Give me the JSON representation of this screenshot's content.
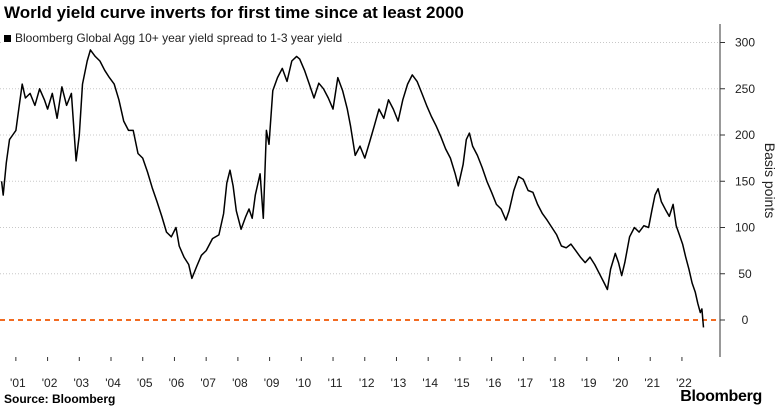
{
  "header": {
    "title": "World yield curve inverts for first time since at least 2000"
  },
  "legend": {
    "label": "Bloomberg Global Agg 10+ year yield spread to 1-3 year yield"
  },
  "footer": {
    "source": "Source: Bloomberg",
    "brand": "Bloomberg"
  },
  "colors": {
    "line": "#000000",
    "zero_line": "#f26b21",
    "grid": "#c8c8c8"
  },
  "chart_data": {
    "type": "line",
    "title": "World yield curve inverts for first time since at least 2000",
    "ylabel": "Basis points",
    "xlabel": "",
    "ylim": [
      -40,
      320
    ],
    "yticks": [
      0,
      50,
      100,
      150,
      200,
      250,
      300
    ],
    "xlim": [
      2000.5,
      2023.2
    ],
    "xticks": [
      {
        "value": 2001,
        "label": "'01"
      },
      {
        "value": 2002,
        "label": "'02"
      },
      {
        "value": 2003,
        "label": "'03"
      },
      {
        "value": 2004,
        "label": "'04"
      },
      {
        "value": 2005,
        "label": "'05"
      },
      {
        "value": 2006,
        "label": "'06"
      },
      {
        "value": 2007,
        "label": "'07"
      },
      {
        "value": 2008,
        "label": "'08"
      },
      {
        "value": 2009,
        "label": "'09"
      },
      {
        "value": 2010,
        "label": "'10"
      },
      {
        "value": 2011,
        "label": "'11"
      },
      {
        "value": 2012,
        "label": "'12"
      },
      {
        "value": 2013,
        "label": "'13"
      },
      {
        "value": 2014,
        "label": "'14"
      },
      {
        "value": 2015,
        "label": "'15"
      },
      {
        "value": 2016,
        "label": "'16"
      },
      {
        "value": 2017,
        "label": "'17"
      },
      {
        "value": 2018,
        "label": "'18"
      },
      {
        "value": 2019,
        "label": "'19"
      },
      {
        "value": 2020,
        "label": "'20"
      },
      {
        "value": 2021,
        "label": "'21"
      },
      {
        "value": 2022,
        "label": "'22"
      }
    ],
    "grid": "horizontal dotted",
    "legend_position": "top-left",
    "reference_line": {
      "y": 0,
      "style": "dashed",
      "color": "#f26b21"
    },
    "series": [
      {
        "name": "Bloomberg Global Agg 10+ year yield spread to 1-3 year yield",
        "points": [
          [
            2000.55,
            150
          ],
          [
            2000.6,
            135
          ],
          [
            2000.7,
            170
          ],
          [
            2000.8,
            195
          ],
          [
            2000.9,
            200
          ],
          [
            2001.0,
            205
          ],
          [
            2001.1,
            230
          ],
          [
            2001.2,
            255
          ],
          [
            2001.3,
            240
          ],
          [
            2001.45,
            245
          ],
          [
            2001.6,
            232
          ],
          [
            2001.75,
            250
          ],
          [
            2001.9,
            238
          ],
          [
            2002.0,
            228
          ],
          [
            2002.15,
            245
          ],
          [
            2002.3,
            218
          ],
          [
            2002.45,
            252
          ],
          [
            2002.6,
            232
          ],
          [
            2002.75,
            245
          ],
          [
            2002.9,
            172
          ],
          [
            2003.0,
            200
          ],
          [
            2003.1,
            255
          ],
          [
            2003.25,
            280
          ],
          [
            2003.35,
            292
          ],
          [
            2003.5,
            285
          ],
          [
            2003.65,
            280
          ],
          [
            2003.8,
            270
          ],
          [
            2003.95,
            262
          ],
          [
            2004.1,
            255
          ],
          [
            2004.25,
            238
          ],
          [
            2004.4,
            215
          ],
          [
            2004.55,
            205
          ],
          [
            2004.7,
            205
          ],
          [
            2004.85,
            180
          ],
          [
            2005.0,
            175
          ],
          [
            2005.15,
            160
          ],
          [
            2005.3,
            143
          ],
          [
            2005.45,
            128
          ],
          [
            2005.6,
            112
          ],
          [
            2005.75,
            95
          ],
          [
            2005.9,
            90
          ],
          [
            2006.05,
            100
          ],
          [
            2006.15,
            80
          ],
          [
            2006.3,
            68
          ],
          [
            2006.45,
            60
          ],
          [
            2006.55,
            45
          ],
          [
            2006.7,
            58
          ],
          [
            2006.85,
            70
          ],
          [
            2007.0,
            75
          ],
          [
            2007.2,
            88
          ],
          [
            2007.4,
            92
          ],
          [
            2007.55,
            115
          ],
          [
            2007.65,
            148
          ],
          [
            2007.75,
            162
          ],
          [
            2007.85,
            145
          ],
          [
            2007.95,
            118
          ],
          [
            2008.1,
            98
          ],
          [
            2008.25,
            112
          ],
          [
            2008.35,
            120
          ],
          [
            2008.45,
            110
          ],
          [
            2008.55,
            135
          ],
          [
            2008.7,
            158
          ],
          [
            2008.8,
            110
          ],
          [
            2008.9,
            205
          ],
          [
            2008.98,
            190
          ],
          [
            2009.1,
            248
          ],
          [
            2009.25,
            262
          ],
          [
            2009.4,
            272
          ],
          [
            2009.55,
            258
          ],
          [
            2009.7,
            280
          ],
          [
            2009.85,
            285
          ],
          [
            2009.95,
            282
          ],
          [
            2010.1,
            270
          ],
          [
            2010.25,
            255
          ],
          [
            2010.4,
            240
          ],
          [
            2010.55,
            256
          ],
          [
            2010.7,
            250
          ],
          [
            2010.85,
            240
          ],
          [
            2011.0,
            228
          ],
          [
            2011.15,
            262
          ],
          [
            2011.3,
            248
          ],
          [
            2011.45,
            228
          ],
          [
            2011.55,
            210
          ],
          [
            2011.7,
            178
          ],
          [
            2011.85,
            188
          ],
          [
            2012.0,
            175
          ],
          [
            2012.15,
            192
          ],
          [
            2012.3,
            210
          ],
          [
            2012.45,
            228
          ],
          [
            2012.6,
            218
          ],
          [
            2012.75,
            238
          ],
          [
            2012.9,
            228
          ],
          [
            2013.05,
            215
          ],
          [
            2013.2,
            238
          ],
          [
            2013.35,
            255
          ],
          [
            2013.5,
            265
          ],
          [
            2013.65,
            258
          ],
          [
            2013.8,
            245
          ],
          [
            2013.95,
            232
          ],
          [
            2014.1,
            220
          ],
          [
            2014.25,
            210
          ],
          [
            2014.4,
            198
          ],
          [
            2014.55,
            185
          ],
          [
            2014.7,
            175
          ],
          [
            2014.85,
            158
          ],
          [
            2014.95,
            145
          ],
          [
            2015.1,
            168
          ],
          [
            2015.2,
            195
          ],
          [
            2015.3,
            202
          ],
          [
            2015.4,
            188
          ],
          [
            2015.55,
            178
          ],
          [
            2015.7,
            165
          ],
          [
            2015.85,
            150
          ],
          [
            2016.0,
            138
          ],
          [
            2016.15,
            125
          ],
          [
            2016.3,
            120
          ],
          [
            2016.45,
            108
          ],
          [
            2016.55,
            118
          ],
          [
            2016.7,
            140
          ],
          [
            2016.85,
            155
          ],
          [
            2017.0,
            152
          ],
          [
            2017.15,
            140
          ],
          [
            2017.3,
            138
          ],
          [
            2017.45,
            125
          ],
          [
            2017.6,
            115
          ],
          [
            2017.75,
            108
          ],
          [
            2017.9,
            100
          ],
          [
            2018.05,
            92
          ],
          [
            2018.2,
            80
          ],
          [
            2018.35,
            78
          ],
          [
            2018.5,
            82
          ],
          [
            2018.65,
            75
          ],
          [
            2018.8,
            68
          ],
          [
            2018.95,
            62
          ],
          [
            2019.1,
            68
          ],
          [
            2019.25,
            60
          ],
          [
            2019.4,
            50
          ],
          [
            2019.55,
            40
          ],
          [
            2019.65,
            33
          ],
          [
            2019.75,
            55
          ],
          [
            2019.9,
            72
          ],
          [
            2020.0,
            62
          ],
          [
            2020.1,
            48
          ],
          [
            2020.2,
            62
          ],
          [
            2020.35,
            90
          ],
          [
            2020.5,
            100
          ],
          [
            2020.65,
            95
          ],
          [
            2020.8,
            102
          ],
          [
            2020.95,
            100
          ],
          [
            2021.05,
            118
          ],
          [
            2021.15,
            135
          ],
          [
            2021.25,
            142
          ],
          [
            2021.35,
            128
          ],
          [
            2021.5,
            118
          ],
          [
            2021.6,
            112
          ],
          [
            2021.72,
            125
          ],
          [
            2021.82,
            102
          ],
          [
            2021.92,
            92
          ],
          [
            2022.02,
            82
          ],
          [
            2022.12,
            68
          ],
          [
            2022.22,
            55
          ],
          [
            2022.32,
            40
          ],
          [
            2022.42,
            30
          ],
          [
            2022.5,
            18
          ],
          [
            2022.58,
            8
          ],
          [
            2022.63,
            12
          ],
          [
            2022.68,
            -8
          ]
        ]
      }
    ]
  }
}
